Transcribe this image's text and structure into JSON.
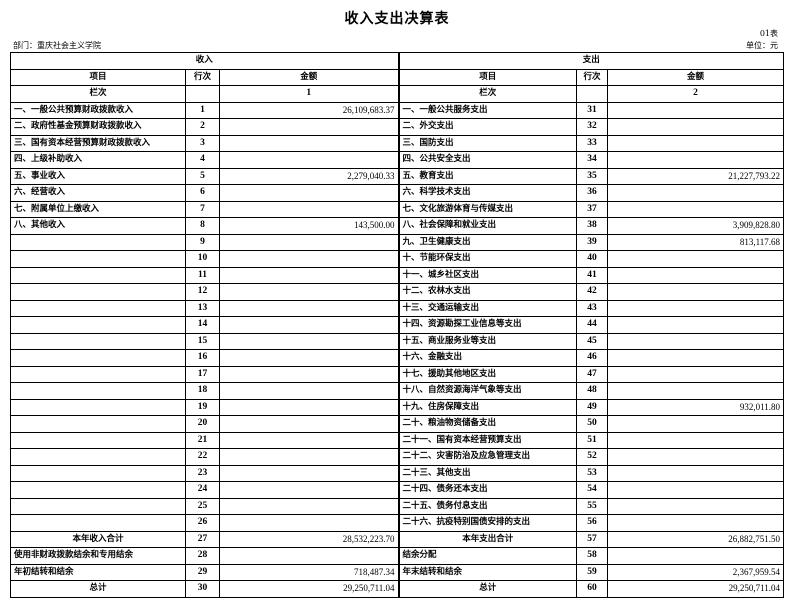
{
  "header": {
    "title": "收入支出决算表",
    "form_no": "01表",
    "department": "部门：重庆社会主义学院",
    "unit": "单位：元"
  },
  "table": {
    "income_section": "收入",
    "expense_section": "支出",
    "col_item": "项目",
    "col_row": "行次",
    "col_amount": "金额",
    "col_index_label": "栏次",
    "income_col_no": "1",
    "expense_col_no": "2",
    "rows": [
      {
        "li": "一、一般公共预算财政拨款收入",
        "ln": "1",
        "la": "26,109,683.37",
        "ri": "一、一般公共服务支出",
        "rn": "31",
        "ra": ""
      },
      {
        "li": "二、政府性基金预算财政拨款收入",
        "ln": "2",
        "la": "",
        "ri": "二、外交支出",
        "rn": "32",
        "ra": ""
      },
      {
        "li": "三、国有资本经营预算财政拨款收入",
        "ln": "3",
        "la": "",
        "ri": "三、国防支出",
        "rn": "33",
        "ra": ""
      },
      {
        "li": "四、上级补助收入",
        "ln": "4",
        "la": "",
        "ri": "四、公共安全支出",
        "rn": "34",
        "ra": ""
      },
      {
        "li": "五、事业收入",
        "ln": "5",
        "la": "2,279,040.33",
        "ri": "五、教育支出",
        "rn": "35",
        "ra": "21,227,793.22"
      },
      {
        "li": "六、经营收入",
        "ln": "6",
        "la": "",
        "ri": "六、科学技术支出",
        "rn": "36",
        "ra": ""
      },
      {
        "li": "七、附属单位上缴收入",
        "ln": "7",
        "la": "",
        "ri": "七、文化旅游体育与传媒支出",
        "rn": "37",
        "ra": ""
      },
      {
        "li": "八、其他收入",
        "ln": "8",
        "la": "143,500.00",
        "ri": "八、社会保障和就业支出",
        "rn": "38",
        "ra": "3,909,828.80"
      },
      {
        "li": "",
        "ln": "9",
        "la": "",
        "ri": "九、卫生健康支出",
        "rn": "39",
        "ra": "813,117.68"
      },
      {
        "li": "",
        "ln": "10",
        "la": "",
        "ri": "十、节能环保支出",
        "rn": "40",
        "ra": ""
      },
      {
        "li": "",
        "ln": "11",
        "la": "",
        "ri": "十一、城乡社区支出",
        "rn": "41",
        "ra": ""
      },
      {
        "li": "",
        "ln": "12",
        "la": "",
        "ri": "十二、农林水支出",
        "rn": "42",
        "ra": ""
      },
      {
        "li": "",
        "ln": "13",
        "la": "",
        "ri": "十三、交通运输支出",
        "rn": "43",
        "ra": ""
      },
      {
        "li": "",
        "ln": "14",
        "la": "",
        "ri": "十四、资源勘探工业信息等支出",
        "rn": "44",
        "ra": ""
      },
      {
        "li": "",
        "ln": "15",
        "la": "",
        "ri": "十五、商业服务业等支出",
        "rn": "45",
        "ra": ""
      },
      {
        "li": "",
        "ln": "16",
        "la": "",
        "ri": "十六、金融支出",
        "rn": "46",
        "ra": ""
      },
      {
        "li": "",
        "ln": "17",
        "la": "",
        "ri": "十七、援助其他地区支出",
        "rn": "47",
        "ra": ""
      },
      {
        "li": "",
        "ln": "18",
        "la": "",
        "ri": "十八、自然资源海洋气象等支出",
        "rn": "48",
        "ra": ""
      },
      {
        "li": "",
        "ln": "19",
        "la": "",
        "ri": "十九、住房保障支出",
        "rn": "49",
        "ra": "932,011.80"
      },
      {
        "li": "",
        "ln": "20",
        "la": "",
        "ri": "二十、粮油物资储备支出",
        "rn": "50",
        "ra": ""
      },
      {
        "li": "",
        "ln": "21",
        "la": "",
        "ri": "二十一、国有资本经营预算支出",
        "rn": "51",
        "ra": ""
      },
      {
        "li": "",
        "ln": "22",
        "la": "",
        "ri": "二十二、灾害防治及应急管理支出",
        "rn": "52",
        "ra": ""
      },
      {
        "li": "",
        "ln": "23",
        "la": "",
        "ri": "二十三、其他支出",
        "rn": "53",
        "ra": ""
      },
      {
        "li": "",
        "ln": "24",
        "la": "",
        "ri": "二十四、债务还本支出",
        "rn": "54",
        "ra": ""
      },
      {
        "li": "",
        "ln": "25",
        "la": "",
        "ri": "二十五、债务付息支出",
        "rn": "55",
        "ra": ""
      },
      {
        "li": "",
        "ln": "26",
        "la": "",
        "ri": "二十六、抗疫特别国债安排的支出",
        "rn": "56",
        "ra": ""
      },
      {
        "li": "本年收入合计",
        "ln": "27",
        "la": "28,532,223.70",
        "ri": "本年支出合计",
        "rn": "57",
        "ra": "26,882,751.50",
        "center": true
      },
      {
        "li": "使用非财政拨款结余和专用结余",
        "ln": "28",
        "la": "",
        "ri": "结余分配",
        "rn": "58",
        "ra": ""
      },
      {
        "li": "年初结转和结余",
        "ln": "29",
        "la": "718,487.34",
        "ri": "年末结转和结余",
        "rn": "59",
        "ra": "2,367,959.54"
      },
      {
        "li": "总计",
        "ln": "30",
        "la": "29,250,711.04",
        "ri": "总计",
        "rn": "60",
        "ra": "29,250,711.04",
        "center": true
      }
    ]
  }
}
